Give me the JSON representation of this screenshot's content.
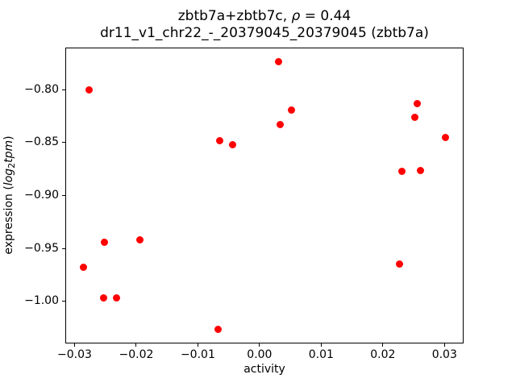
{
  "figure": {
    "title_line1": {
      "prefix": "zbtb7a+zbtb7c, ",
      "rho_symbol": "ρ",
      "rho_value": " = 0.44"
    },
    "title_line2": "dr11_v1_chr22_-_20379045_20379045 (zbtb7a)",
    "xlabel": "activity",
    "ylabel": {
      "prefix": "expression (",
      "log_word": "log",
      "log_base": "2",
      "unit_word": "tpm",
      "suffix": ")"
    }
  },
  "chart_data": {
    "type": "scatter",
    "title": "zbtb7a+zbtb7c, ρ = 0.44",
    "subtitle": "dr11_v1_chr22_-_20379045_20379045 (zbtb7a)",
    "xlabel": "activity",
    "ylabel": "expression (log2 tpm)",
    "legend": null,
    "grid": false,
    "marker": "circle",
    "marker_color": "#ff0000",
    "xlim": [
      -0.0315,
      0.0331
    ],
    "ylim": [
      -1.04,
      -0.76
    ],
    "xtick_values": [
      -0.03,
      -0.02,
      -0.01,
      0.0,
      0.01,
      0.02,
      0.03
    ],
    "xtick_labels": [
      "−0.03",
      "−0.02",
      "−0.01",
      "0.00",
      "0.01",
      "0.02",
      "0.03"
    ],
    "ytick_values": [
      -0.8,
      -0.85,
      -0.9,
      -0.95,
      -1.0
    ],
    "ytick_labels": [
      "−0.80",
      "−0.85",
      "−0.90",
      "−0.95",
      "−1.00"
    ],
    "points": [
      {
        "x": -0.0286,
        "y": -0.968
      },
      {
        "x": -0.0277,
        "y": -0.8
      },
      {
        "x": -0.0253,
        "y": -0.997
      },
      {
        "x": -0.0252,
        "y": -0.944
      },
      {
        "x": -0.0232,
        "y": -0.997
      },
      {
        "x": -0.0194,
        "y": -0.942
      },
      {
        "x": -0.0067,
        "y": -1.027
      },
      {
        "x": -0.0065,
        "y": -0.848
      },
      {
        "x": -0.0044,
        "y": -0.852
      },
      {
        "x": 0.0031,
        "y": -0.773
      },
      {
        "x": 0.0034,
        "y": -0.833
      },
      {
        "x": 0.0052,
        "y": -0.819
      },
      {
        "x": 0.0227,
        "y": -0.965
      },
      {
        "x": 0.0231,
        "y": -0.877
      },
      {
        "x": 0.0252,
        "y": -0.826
      },
      {
        "x": 0.0256,
        "y": -0.813
      },
      {
        "x": 0.0261,
        "y": -0.876
      },
      {
        "x": 0.0302,
        "y": -0.845
      }
    ]
  }
}
